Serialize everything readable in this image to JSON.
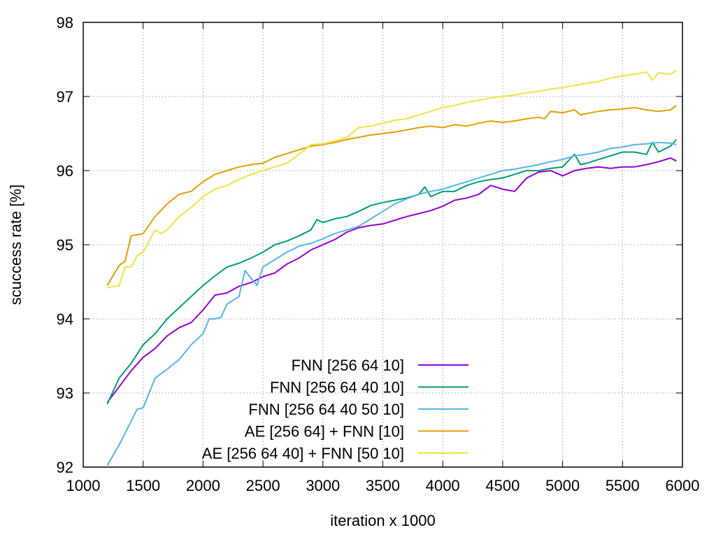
{
  "chart_data": {
    "type": "line",
    "title": "",
    "xlabel": "iteration x 1000",
    "ylabel": "scuccess rate [%]",
    "xlim": [
      1000,
      6000
    ],
    "ylim": [
      92,
      98
    ],
    "xticks": [
      1000,
      1500,
      2000,
      2500,
      3000,
      3500,
      4000,
      4500,
      5000,
      5500,
      6000
    ],
    "yticks": [
      92,
      93,
      94,
      95,
      96,
      97,
      98
    ],
    "grid": true,
    "legend_position": "bottom-center",
    "series": [
      {
        "name": "FNN [256 64 10]",
        "color": "#9400d3",
        "x": [
          1200,
          1400,
          1500,
          1600,
          1700,
          1800,
          1900,
          2000,
          2100,
          2200,
          2300,
          2400,
          2500,
          2600,
          2700,
          2800,
          2900,
          3000,
          3100,
          3200,
          3300,
          3400,
          3500,
          3600,
          3700,
          3800,
          3900,
          4000,
          4100,
          4200,
          4300,
          4400,
          4500,
          4600,
          4700,
          4800,
          4900,
          5000,
          5100,
          5200,
          5300,
          5400,
          5500,
          5600,
          5700,
          5800,
          5900,
          5950
        ],
        "y": [
          92.87,
          93.3,
          93.48,
          93.6,
          93.77,
          93.88,
          93.95,
          94.12,
          94.32,
          94.35,
          94.44,
          94.49,
          94.57,
          94.62,
          94.74,
          94.82,
          94.93,
          95.0,
          95.07,
          95.17,
          95.23,
          95.26,
          95.28,
          95.33,
          95.38,
          95.42,
          95.46,
          95.52,
          95.6,
          95.63,
          95.68,
          95.8,
          95.75,
          95.72,
          95.9,
          95.98,
          96.0,
          95.93,
          96.0,
          96.03,
          96.05,
          96.03,
          96.05,
          96.05,
          96.08,
          96.12,
          96.17,
          96.13
        ]
      },
      {
        "name": "FNN [256 64 40 10]",
        "color": "#009e73",
        "x": [
          1200,
          1300,
          1400,
          1500,
          1600,
          1700,
          1800,
          1900,
          2000,
          2100,
          2200,
          2300,
          2400,
          2500,
          2600,
          2700,
          2800,
          2900,
          2950,
          3000,
          3100,
          3200,
          3300,
          3400,
          3500,
          3600,
          3700,
          3800,
          3850,
          3900,
          4000,
          4100,
          4200,
          4300,
          4400,
          4500,
          4600,
          4700,
          4800,
          4900,
          5000,
          5100,
          5150,
          5200,
          5300,
          5400,
          5500,
          5600,
          5700,
          5750,
          5800,
          5900,
          5950
        ],
        "y": [
          92.85,
          93.2,
          93.4,
          93.65,
          93.8,
          94.0,
          94.15,
          94.3,
          94.45,
          94.58,
          94.7,
          94.75,
          94.82,
          94.9,
          95.0,
          95.05,
          95.12,
          95.2,
          95.34,
          95.3,
          95.35,
          95.38,
          95.45,
          95.53,
          95.57,
          95.6,
          95.63,
          95.68,
          95.78,
          95.65,
          95.72,
          95.72,
          95.8,
          95.85,
          95.88,
          95.9,
          95.95,
          96.0,
          96.0,
          96.03,
          96.05,
          96.22,
          96.08,
          96.1,
          96.15,
          96.2,
          96.25,
          96.25,
          96.22,
          96.38,
          96.25,
          96.33,
          96.42
        ]
      },
      {
        "name": "FNN [256 64 40 50 10]",
        "color": "#56b4e9",
        "x": [
          1200,
          1300,
          1400,
          1450,
          1500,
          1600,
          1700,
          1800,
          1900,
          2000,
          2050,
          2100,
          2150,
          2200,
          2300,
          2350,
          2400,
          2450,
          2500,
          2600,
          2700,
          2800,
          2900,
          3000,
          3100,
          3200,
          3300,
          3400,
          3500,
          3600,
          3700,
          3800,
          3900,
          4000,
          4100,
          4200,
          4300,
          4400,
          4500,
          4600,
          4700,
          4800,
          4900,
          5000,
          5100,
          5200,
          5300,
          5400,
          5500,
          5600,
          5700,
          5800,
          5900,
          5950
        ],
        "y": [
          92.02,
          92.3,
          92.62,
          92.78,
          92.8,
          93.2,
          93.32,
          93.45,
          93.65,
          93.8,
          94.0,
          94.0,
          94.02,
          94.2,
          94.3,
          94.65,
          94.55,
          94.45,
          94.7,
          94.8,
          94.9,
          94.98,
          95.02,
          95.08,
          95.15,
          95.2,
          95.25,
          95.35,
          95.45,
          95.55,
          95.62,
          95.68,
          95.72,
          95.75,
          95.8,
          95.85,
          95.9,
          95.95,
          96.0,
          96.02,
          96.05,
          96.08,
          96.12,
          96.15,
          96.2,
          96.22,
          96.25,
          96.3,
          96.32,
          96.35,
          96.36,
          96.38,
          96.37,
          96.35
        ]
      },
      {
        "name": "AE [256 64] + FNN [10]",
        "color": "#e69f00",
        "x": [
          1200,
          1300,
          1350,
          1400,
          1500,
          1600,
          1700,
          1800,
          1900,
          2000,
          2100,
          2200,
          2300,
          2400,
          2500,
          2600,
          2700,
          2800,
          2900,
          3000,
          3100,
          3200,
          3300,
          3400,
          3500,
          3600,
          3700,
          3800,
          3900,
          4000,
          4100,
          4200,
          4300,
          4400,
          4500,
          4600,
          4700,
          4800,
          4850,
          4900,
          5000,
          5100,
          5150,
          5200,
          5300,
          5400,
          5500,
          5600,
          5700,
          5800,
          5900,
          5950
        ],
        "y": [
          94.45,
          94.72,
          94.78,
          95.12,
          95.15,
          95.38,
          95.55,
          95.68,
          95.72,
          95.85,
          95.95,
          96.0,
          96.05,
          96.08,
          96.1,
          96.18,
          96.23,
          96.28,
          96.33,
          96.35,
          96.38,
          96.42,
          96.45,
          96.48,
          96.5,
          96.52,
          96.55,
          96.58,
          96.6,
          96.58,
          96.62,
          96.6,
          96.64,
          96.67,
          96.65,
          96.67,
          96.7,
          96.72,
          96.7,
          96.8,
          96.78,
          96.82,
          96.75,
          96.77,
          96.8,
          96.82,
          96.83,
          96.85,
          96.82,
          96.8,
          96.82,
          96.88
        ]
      },
      {
        "name": "AE [256 64 40] + FNN [50 10]",
        "color": "#f0e442",
        "x": [
          1200,
          1300,
          1350,
          1400,
          1450,
          1500,
          1550,
          1600,
          1650,
          1700,
          1800,
          1900,
          2000,
          2100,
          2200,
          2300,
          2400,
          2500,
          2600,
          2700,
          2800,
          2900,
          3000,
          3100,
          3200,
          3300,
          3400,
          3500,
          3600,
          3700,
          3800,
          3900,
          4000,
          4100,
          4200,
          4300,
          4400,
          4500,
          4600,
          4700,
          4800,
          4900,
          5000,
          5100,
          5200,
          5300,
          5400,
          5500,
          5600,
          5700,
          5750,
          5800,
          5900,
          5950
        ],
        "y": [
          94.42,
          94.45,
          94.7,
          94.7,
          94.85,
          94.9,
          95.05,
          95.2,
          95.15,
          95.2,
          95.38,
          95.5,
          95.65,
          95.75,
          95.8,
          95.88,
          95.95,
          96.0,
          96.05,
          96.1,
          96.22,
          96.35,
          96.36,
          96.4,
          96.45,
          96.58,
          96.6,
          96.64,
          96.68,
          96.7,
          96.75,
          96.8,
          96.85,
          96.88,
          96.92,
          96.95,
          96.98,
          97.0,
          97.02,
          97.05,
          97.07,
          97.1,
          97.12,
          97.15,
          97.18,
          97.2,
          97.25,
          97.28,
          97.3,
          97.33,
          97.22,
          97.32,
          97.3,
          97.35
        ]
      }
    ]
  }
}
